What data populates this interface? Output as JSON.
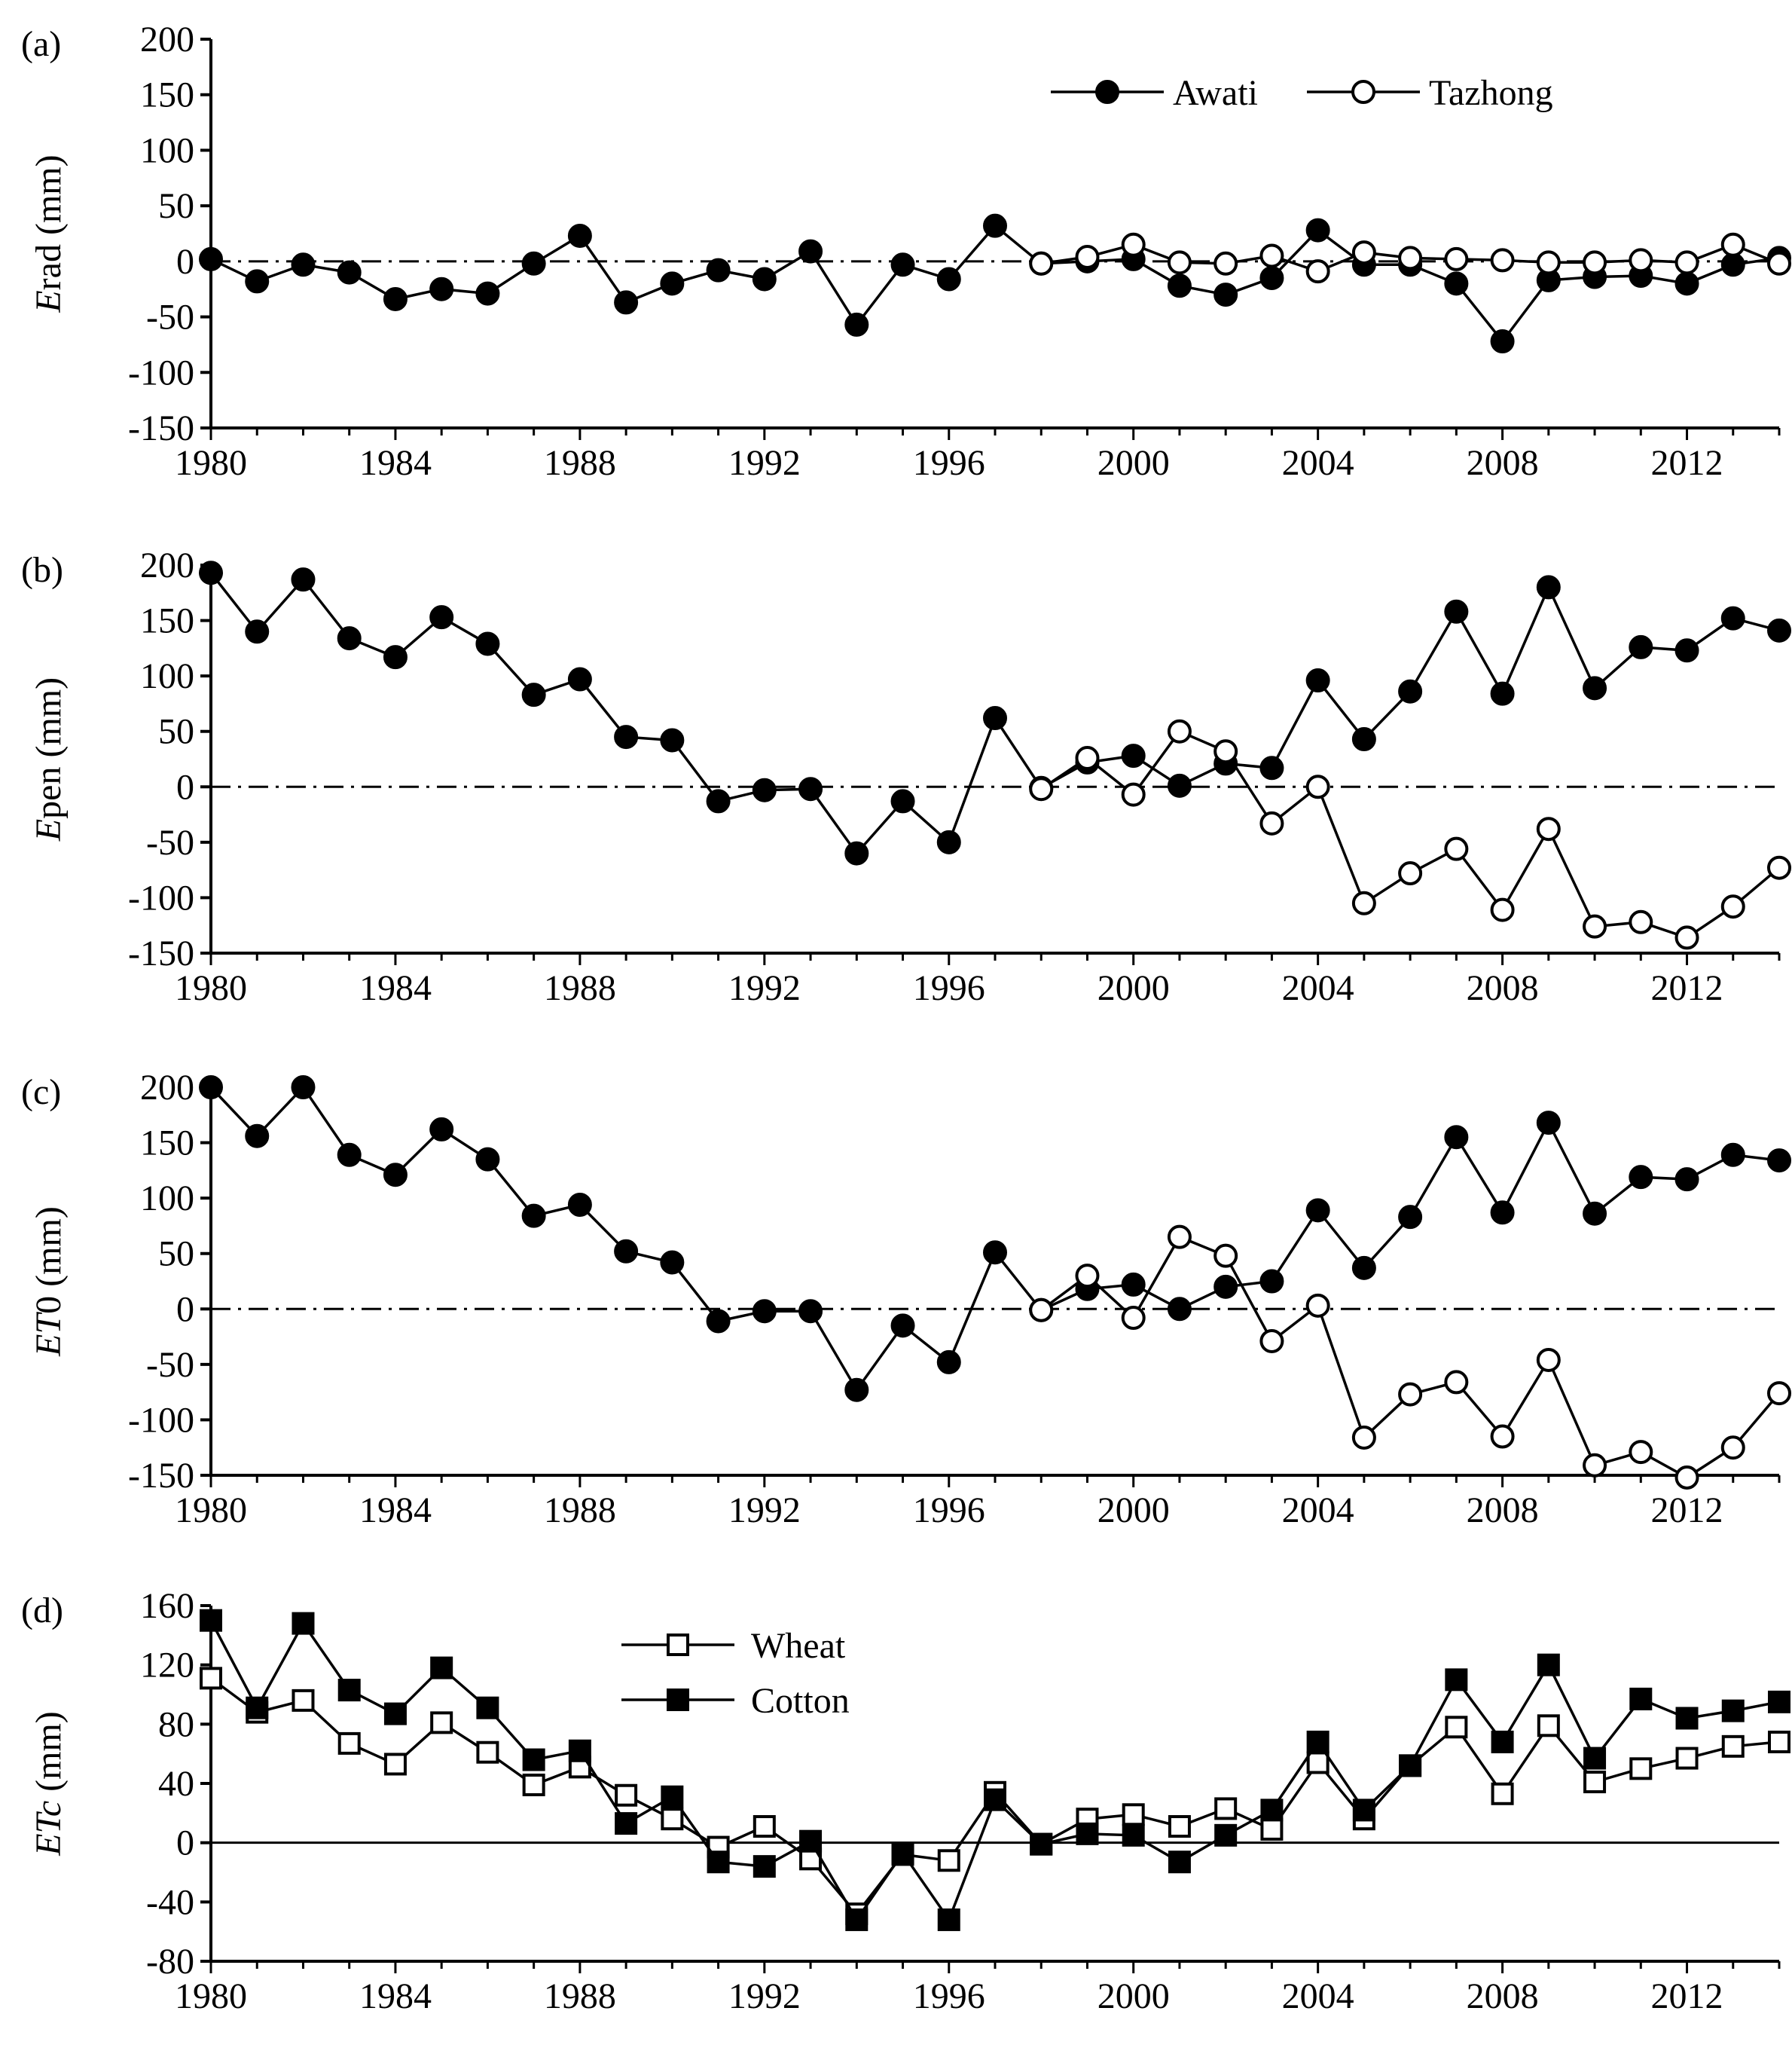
{
  "figure": {
    "panels": [
      {
        "panel_label": "(a)",
        "ylabel": {
          "italic": "E",
          "rest": "rad  (mm)"
        },
        "zero_line": "dashdot",
        "legend": {
          "entries": [
            "Awati",
            "Tazhong"
          ]
        }
      },
      {
        "panel_label": "(b)",
        "ylabel": {
          "italic": "E",
          "rest": "pen (mm)"
        },
        "zero_line": "dashdot"
      },
      {
        "panel_label": "(c)",
        "ylabel": {
          "italic": "ET",
          "rest": "0 (mm)"
        },
        "zero_line": "dashdot"
      },
      {
        "panel_label": "(d)",
        "ylabel": {
          "italic": "ETc",
          "rest": " (mm)"
        },
        "zero_line": "solid",
        "legend": {
          "entries": [
            "Wheat",
            "Cotton"
          ]
        }
      }
    ]
  },
  "chart_data": [
    {
      "type": "line",
      "title": "",
      "xlabel": "",
      "ylabel": "Erad (mm)",
      "xlim": [
        1980,
        2014
      ],
      "ylim": [
        -150,
        200
      ],
      "xticks": [
        1980,
        1984,
        1988,
        1992,
        1996,
        2000,
        2004,
        2008,
        2012
      ],
      "yticks": [
        -150,
        -100,
        -50,
        0,
        50,
        100,
        150,
        200
      ],
      "series": [
        {
          "name": "Awati",
          "marker": "filled-circle",
          "x": [
            1980,
            1981,
            1982,
            1983,
            1984,
            1985,
            1986,
            1987,
            1988,
            1989,
            1990,
            1991,
            1992,
            1993,
            1994,
            1995,
            1996,
            1997,
            1998,
            1999,
            2000,
            2001,
            2002,
            2003,
            2004,
            2005,
            2006,
            2007,
            2008,
            2009,
            2010,
            2011,
            2012,
            2013,
            2014
          ],
          "values": [
            2,
            -18,
            -3,
            -10,
            -34,
            -25,
            -29,
            -2,
            23,
            -37,
            -20,
            -8,
            -16,
            9,
            -57,
            -3,
            -16,
            32,
            -2,
            0,
            2,
            -22,
            -30,
            -15,
            28,
            -3,
            -3,
            -20,
            -72,
            -17,
            -14,
            -13,
            -20,
            -3,
            3
          ]
        },
        {
          "name": "Tazhong",
          "marker": "open-circle",
          "x": [
            1998,
            1999,
            2000,
            2001,
            2002,
            2003,
            2004,
            2005,
            2006,
            2007,
            2008,
            2009,
            2010,
            2011,
            2012,
            2013,
            2014
          ],
          "values": [
            -2,
            4,
            15,
            -1,
            -2,
            5,
            -9,
            8,
            3,
            2,
            1,
            -1,
            -1,
            1,
            -1,
            15,
            -2
          ]
        }
      ]
    },
    {
      "type": "line",
      "title": "",
      "xlabel": "",
      "ylabel": "Epen (mm)",
      "xlim": [
        1980,
        2014
      ],
      "ylim": [
        -150,
        200
      ],
      "xticks": [
        1980,
        1984,
        1988,
        1992,
        1996,
        2000,
        2004,
        2008,
        2012
      ],
      "yticks": [
        -150,
        -100,
        -50,
        0,
        50,
        100,
        150,
        200
      ],
      "series": [
        {
          "name": "Awati",
          "marker": "filled-circle",
          "x": [
            1980,
            1981,
            1982,
            1983,
            1984,
            1985,
            1986,
            1987,
            1988,
            1989,
            1990,
            1991,
            1992,
            1993,
            1994,
            1995,
            1996,
            1997,
            1998,
            1999,
            2000,
            2001,
            2002,
            2003,
            2004,
            2005,
            2006,
            2007,
            2008,
            2009,
            2010,
            2011,
            2012,
            2013,
            2014
          ],
          "values": [
            193,
            140,
            187,
            134,
            117,
            153,
            129,
            83,
            97,
            45,
            42,
            -13,
            -3,
            -2,
            -60,
            -13,
            -50,
            62,
            -1,
            22,
            28,
            1,
            21,
            17,
            96,
            43,
            86,
            158,
            84,
            180,
            89,
            126,
            123,
            152,
            141
          ]
        },
        {
          "name": "Tazhong",
          "marker": "open-circle",
          "x": [
            1998,
            1999,
            2000,
            2001,
            2002,
            2003,
            2004,
            2005,
            2006,
            2007,
            2008,
            2009,
            2010,
            2011,
            2012,
            2013,
            2014
          ],
          "values": [
            -2,
            26,
            -7,
            50,
            32,
            -33,
            0,
            -105,
            -78,
            -56,
            -111,
            -38,
            -126,
            -122,
            -136,
            -108,
            -73
          ]
        }
      ]
    },
    {
      "type": "line",
      "title": "",
      "xlabel": "",
      "ylabel": "ET0 (mm)",
      "xlim": [
        1980,
        2014
      ],
      "ylim": [
        -150,
        200
      ],
      "xticks": [
        1980,
        1984,
        1988,
        1992,
        1996,
        2000,
        2004,
        2008,
        2012
      ],
      "yticks": [
        -150,
        -100,
        -50,
        0,
        50,
        100,
        150,
        200
      ],
      "series": [
        {
          "name": "Awati",
          "marker": "filled-circle",
          "x": [
            1980,
            1981,
            1982,
            1983,
            1984,
            1985,
            1986,
            1987,
            1988,
            1989,
            1990,
            1991,
            1992,
            1993,
            1994,
            1995,
            1996,
            1997,
            1998,
            1999,
            2000,
            2001,
            2002,
            2003,
            2004,
            2005,
            2006,
            2007,
            2008,
            2009,
            2010,
            2011,
            2012,
            2013,
            2014
          ],
          "values": [
            200,
            156,
            200,
            139,
            121,
            162,
            135,
            84,
            94,
            52,
            42,
            -11,
            -2,
            -2,
            -73,
            -15,
            -48,
            51,
            -1,
            18,
            22,
            0,
            20,
            25,
            89,
            37,
            83,
            155,
            87,
            168,
            86,
            119,
            117,
            139,
            134
          ]
        },
        {
          "name": "Tazhong",
          "marker": "open-circle",
          "x": [
            1998,
            1999,
            2000,
            2001,
            2002,
            2003,
            2004,
            2005,
            2006,
            2007,
            2008,
            2009,
            2010,
            2011,
            2012,
            2013,
            2014
          ],
          "values": [
            -1,
            30,
            -8,
            65,
            48,
            -29,
            3,
            -116,
            -77,
            -66,
            -115,
            -46,
            -141,
            -129,
            -152,
            -125,
            -76
          ]
        }
      ]
    },
    {
      "type": "line",
      "title": "",
      "xlabel": "",
      "ylabel": "ETc (mm)",
      "xlim": [
        1980,
        2014
      ],
      "ylim": [
        -80,
        160
      ],
      "xticks": [
        1980,
        1984,
        1988,
        1992,
        1996,
        2000,
        2004,
        2008,
        2012
      ],
      "yticks": [
        -80,
        -40,
        0,
        40,
        80,
        120,
        160
      ],
      "series": [
        {
          "name": "Wheat",
          "marker": "open-square",
          "x": [
            1980,
            1981,
            1982,
            1983,
            1984,
            1985,
            1986,
            1987,
            1988,
            1989,
            1990,
            1991,
            1992,
            1993,
            1994,
            1995,
            1996,
            1997,
            1998,
            1999,
            2000,
            2001,
            2002,
            2003,
            2004,
            2005,
            2006,
            2007,
            2008,
            2009,
            2010,
            2011,
            2012,
            2013,
            2014
          ],
          "values": [
            111,
            88,
            96,
            67,
            53,
            81,
            61,
            39,
            51,
            32,
            16,
            -3,
            11,
            -11,
            -48,
            -8,
            -12,
            34,
            -1,
            16,
            19,
            11,
            23,
            9,
            54,
            16,
            52,
            78,
            33,
            79,
            41,
            50,
            57,
            65,
            68
          ]
        },
        {
          "name": "Cotton",
          "marker": "filled-square",
          "x": [
            1980,
            1981,
            1982,
            1983,
            1984,
            1985,
            1986,
            1987,
            1988,
            1989,
            1990,
            1991,
            1992,
            1993,
            1994,
            1995,
            1996,
            1997,
            1998,
            1999,
            2000,
            2001,
            2002,
            2003,
            2004,
            2005,
            2006,
            2007,
            2008,
            2009,
            2010,
            2011,
            2012,
            2013,
            2014
          ],
          "values": [
            150,
            91,
            148,
            103,
            87,
            118,
            91,
            56,
            62,
            13,
            31,
            -13,
            -16,
            1,
            -52,
            -7,
            -52,
            29,
            -1,
            6,
            5,
            -13,
            5,
            22,
            68,
            22,
            52,
            110,
            68,
            120,
            57,
            97,
            84,
            89,
            95
          ]
        }
      ]
    }
  ]
}
